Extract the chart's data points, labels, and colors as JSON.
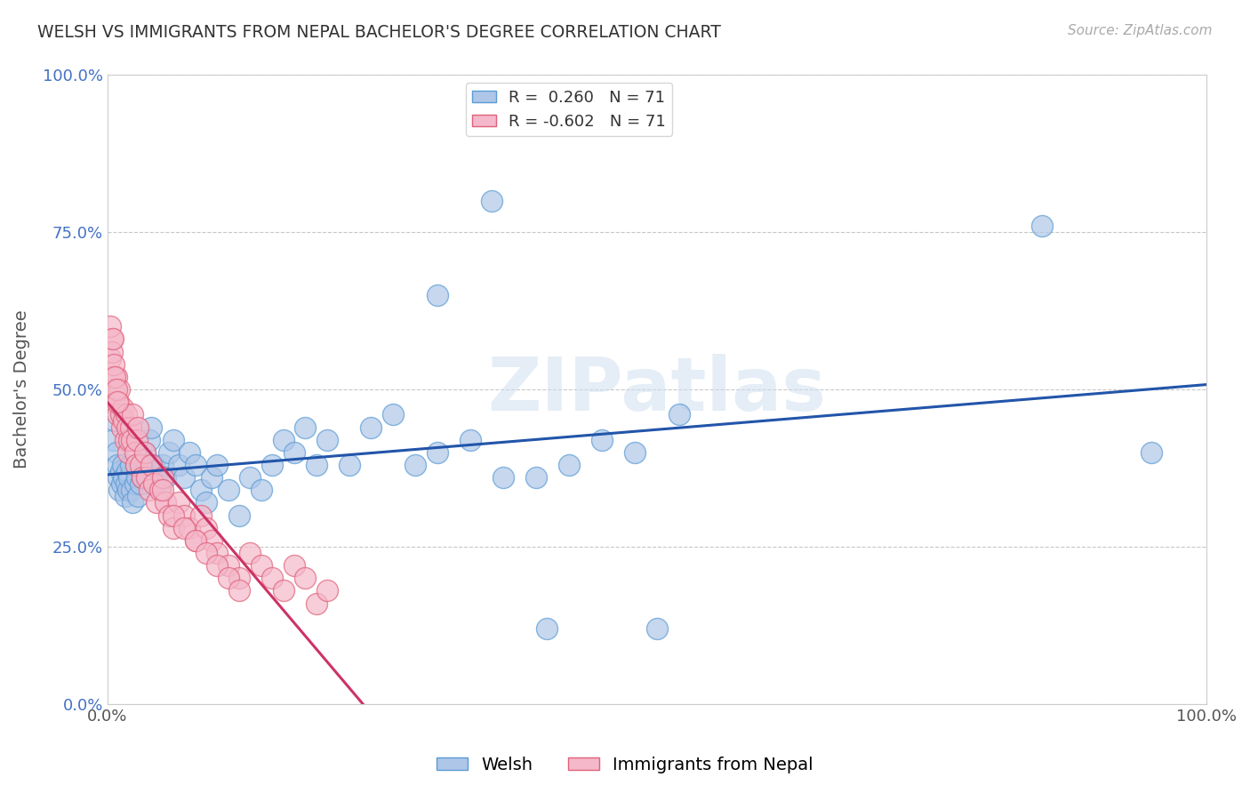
{
  "title": "WELSH VS IMMIGRANTS FROM NEPAL BACHELOR'S DEGREE CORRELATION CHART",
  "source": "Source: ZipAtlas.com",
  "ylabel": "Bachelor's Degree",
  "xlabel": "",
  "xlim": [
    0.0,
    1.0
  ],
  "ylim": [
    0.0,
    1.0
  ],
  "ytick_values": [
    0.0,
    0.25,
    0.5,
    0.75,
    1.0
  ],
  "ytick_labels": [
    "0.0%",
    "25.0%",
    "50.0%",
    "75.0%",
    "100.0%"
  ],
  "xtick_values": [
    0.0,
    1.0
  ],
  "xtick_labels": [
    "0.0%",
    "100.0%"
  ],
  "grid_color": "#c8c8c8",
  "background_color": "#ffffff",
  "watermark": "ZIPatlas",
  "welsh_color": "#aec6e8",
  "welsh_edge_color": "#5b9bd5",
  "nepal_color": "#f4b8ca",
  "nepal_edge_color": "#e0607a",
  "welsh_R": 0.26,
  "welsh_N": 71,
  "nepal_R": -0.602,
  "nepal_N": 71,
  "welsh_line_color": "#2255aa",
  "nepal_line_color": "#cc3366",
  "welsh_x": [
    0.005,
    0.007,
    0.008,
    0.009,
    0.01,
    0.011,
    0.012,
    0.013,
    0.014,
    0.015,
    0.016,
    0.017,
    0.018,
    0.019,
    0.02,
    0.021,
    0.022,
    0.023,
    0.025,
    0.026,
    0.027,
    0.028,
    0.03,
    0.032,
    0.034,
    0.036,
    0.038,
    0.04,
    0.042,
    0.045,
    0.048,
    0.05,
    0.053,
    0.056,
    0.06,
    0.065,
    0.07,
    0.075,
    0.08,
    0.085,
    0.09,
    0.095,
    0.1,
    0.11,
    0.12,
    0.13,
    0.14,
    0.15,
    0.16,
    0.17,
    0.18,
    0.19,
    0.2,
    0.22,
    0.24,
    0.26,
    0.28,
    0.3,
    0.33,
    0.36,
    0.39,
    0.42,
    0.45,
    0.48,
    0.5,
    0.52,
    0.3,
    0.35,
    0.4,
    0.85,
    0.95
  ],
  "welsh_y": [
    0.42,
    0.45,
    0.4,
    0.38,
    0.36,
    0.34,
    0.37,
    0.35,
    0.38,
    0.36,
    0.33,
    0.35,
    0.37,
    0.34,
    0.36,
    0.38,
    0.34,
    0.32,
    0.35,
    0.38,
    0.36,
    0.33,
    0.35,
    0.36,
    0.4,
    0.38,
    0.42,
    0.44,
    0.38,
    0.36,
    0.34,
    0.38,
    0.36,
    0.4,
    0.42,
    0.38,
    0.36,
    0.4,
    0.38,
    0.34,
    0.32,
    0.36,
    0.38,
    0.34,
    0.3,
    0.36,
    0.34,
    0.38,
    0.42,
    0.4,
    0.44,
    0.38,
    0.42,
    0.38,
    0.44,
    0.46,
    0.38,
    0.4,
    0.42,
    0.36,
    0.36,
    0.38,
    0.42,
    0.4,
    0.12,
    0.46,
    0.65,
    0.8,
    0.12,
    0.76,
    0.4
  ],
  "nepal_x": [
    0.003,
    0.004,
    0.005,
    0.006,
    0.007,
    0.008,
    0.009,
    0.01,
    0.011,
    0.012,
    0.013,
    0.014,
    0.015,
    0.016,
    0.017,
    0.018,
    0.019,
    0.02,
    0.021,
    0.022,
    0.023,
    0.025,
    0.026,
    0.027,
    0.028,
    0.03,
    0.032,
    0.034,
    0.036,
    0.038,
    0.04,
    0.042,
    0.045,
    0.048,
    0.05,
    0.053,
    0.056,
    0.06,
    0.065,
    0.07,
    0.075,
    0.08,
    0.085,
    0.09,
    0.095,
    0.1,
    0.11,
    0.12,
    0.13,
    0.14,
    0.15,
    0.16,
    0.17,
    0.18,
    0.19,
    0.2,
    0.05,
    0.06,
    0.07,
    0.08,
    0.09,
    0.1,
    0.11,
    0.12,
    0.003,
    0.004,
    0.005,
    0.006,
    0.007,
    0.008,
    0.009
  ],
  "nepal_y": [
    0.55,
    0.58,
    0.52,
    0.5,
    0.48,
    0.52,
    0.46,
    0.48,
    0.5,
    0.46,
    0.44,
    0.47,
    0.45,
    0.42,
    0.46,
    0.44,
    0.4,
    0.42,
    0.44,
    0.42,
    0.46,
    0.4,
    0.38,
    0.42,
    0.44,
    0.38,
    0.36,
    0.4,
    0.36,
    0.34,
    0.38,
    0.35,
    0.32,
    0.34,
    0.36,
    0.32,
    0.3,
    0.28,
    0.32,
    0.3,
    0.28,
    0.26,
    0.3,
    0.28,
    0.26,
    0.24,
    0.22,
    0.2,
    0.24,
    0.22,
    0.2,
    0.18,
    0.22,
    0.2,
    0.16,
    0.18,
    0.34,
    0.3,
    0.28,
    0.26,
    0.24,
    0.22,
    0.2,
    0.18,
    0.6,
    0.56,
    0.58,
    0.54,
    0.52,
    0.5,
    0.48
  ]
}
